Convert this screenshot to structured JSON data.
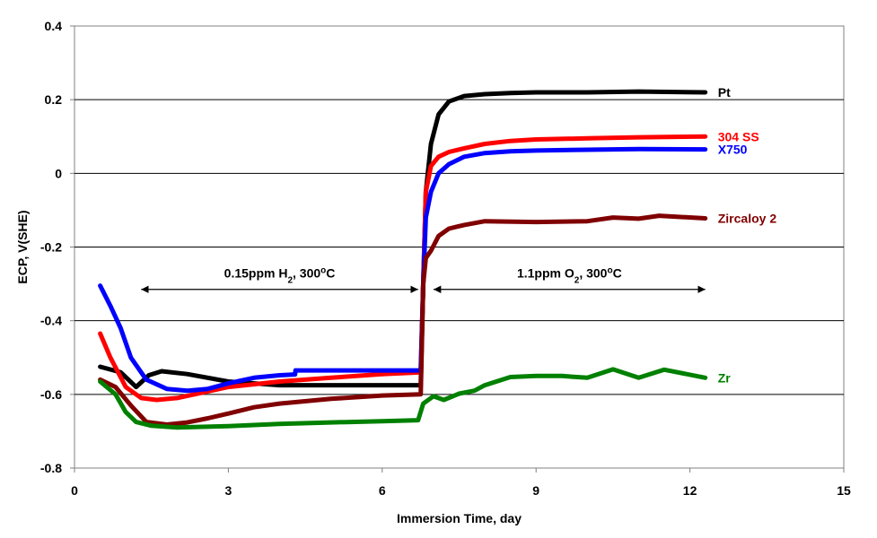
{
  "chart_data": {
    "type": "line",
    "title": "",
    "xlabel": "Immersion Time, day",
    "ylabel": "ECP, V(SHE)",
    "xlim": [
      0,
      15
    ],
    "ylim": [
      -0.8,
      0.4
    ],
    "xticks": [
      0,
      3,
      6,
      9,
      12,
      15
    ],
    "yticks": [
      -0.8,
      -0.6,
      -0.4,
      -0.2,
      0,
      0.2,
      0.4
    ],
    "xtick_labels": [
      "0",
      "3",
      "6",
      "9",
      "12",
      "15"
    ],
    "ytick_labels": [
      "-0.8",
      "-0.6",
      "-0.4",
      "-0.2",
      "0",
      "0.2",
      "0.4"
    ],
    "grid": "horizontal",
    "legend": "inline labels at right end of each series",
    "annotations": [
      {
        "text_main": "0.15ppm H",
        "sub": "2",
        "text_mid": ", 300",
        "sup": "o",
        "text_end": "C",
        "x_from": 1.3,
        "x_to": 6.7,
        "y": -0.315
      },
      {
        "text_main": "1.1ppm O",
        "sub": "2",
        "text_mid": ", 300",
        "sup": "o",
        "text_end": "C",
        "x_from": 7.0,
        "x_to": 12.3,
        "y": -0.315
      }
    ],
    "series": [
      {
        "name": "Pt",
        "color": "#000000",
        "x": [
          0.5,
          0.9,
          1.2,
          1.45,
          1.7,
          2.2,
          3.0,
          4.0,
          5.0,
          6.0,
          6.75,
          6.8,
          6.85,
          6.95,
          7.1,
          7.3,
          7.6,
          8.0,
          8.5,
          9.0,
          10.0,
          11.0,
          12.3
        ],
        "y": [
          -0.525,
          -0.54,
          -0.58,
          -0.548,
          -0.537,
          -0.545,
          -0.565,
          -0.575,
          -0.575,
          -0.575,
          -0.575,
          -0.3,
          -0.05,
          0.08,
          0.16,
          0.195,
          0.21,
          0.215,
          0.218,
          0.22,
          0.22,
          0.222,
          0.22
        ]
      },
      {
        "name": "304 SS",
        "color": "#ff0000",
        "x": [
          0.5,
          0.7,
          1.0,
          1.3,
          1.6,
          2.0,
          2.5,
          3.0,
          4.0,
          5.0,
          6.0,
          6.75,
          6.8,
          6.85,
          6.95,
          7.1,
          7.3,
          7.6,
          8.0,
          8.5,
          9.0,
          10.0,
          11.0,
          12.3
        ],
        "y": [
          -0.435,
          -0.5,
          -0.58,
          -0.61,
          -0.615,
          -0.61,
          -0.595,
          -0.58,
          -0.565,
          -0.555,
          -0.545,
          -0.54,
          -0.3,
          -0.05,
          0.02,
          0.045,
          0.058,
          0.068,
          0.08,
          0.088,
          0.092,
          0.095,
          0.098,
          0.1
        ]
      },
      {
        "name": "X750",
        "color": "#0000ff",
        "x": [
          0.5,
          0.7,
          0.9,
          1.1,
          1.4,
          1.8,
          2.2,
          2.6,
          3.0,
          3.5,
          4.0,
          4.3,
          4.31,
          5.0,
          6.0,
          6.75,
          6.8,
          6.85,
          6.95,
          7.1,
          7.3,
          7.6,
          8.0,
          8.5,
          9.0,
          10.0,
          11.0,
          12.3
        ],
        "y": [
          -0.305,
          -0.36,
          -0.42,
          -0.5,
          -0.56,
          -0.585,
          -0.59,
          -0.585,
          -0.57,
          -0.555,
          -0.548,
          -0.546,
          -0.535,
          -0.535,
          -0.535,
          -0.535,
          -0.3,
          -0.12,
          -0.05,
          0.0,
          0.025,
          0.045,
          0.055,
          0.06,
          0.062,
          0.064,
          0.066,
          0.065
        ]
      },
      {
        "name": "Zircaloy 2",
        "color": "#800000",
        "x": [
          0.5,
          0.8,
          1.1,
          1.4,
          1.8,
          2.2,
          2.6,
          3.0,
          3.5,
          4.0,
          5.0,
          6.0,
          6.75,
          6.8,
          6.85,
          6.95,
          7.1,
          7.3,
          7.6,
          8.0,
          9.0,
          10.0,
          10.5,
          11.0,
          11.4,
          12.3
        ],
        "y": [
          -0.56,
          -0.58,
          -0.63,
          -0.675,
          -0.682,
          -0.676,
          -0.665,
          -0.652,
          -0.635,
          -0.625,
          -0.612,
          -0.603,
          -0.6,
          -0.3,
          -0.23,
          -0.21,
          -0.17,
          -0.15,
          -0.14,
          -0.13,
          -0.132,
          -0.13,
          -0.12,
          -0.123,
          -0.115,
          -0.122
        ]
      },
      {
        "name": "Zr",
        "color": "#008000",
        "x": [
          0.5,
          0.8,
          1.0,
          1.2,
          1.5,
          2.0,
          2.5,
          3.0,
          4.0,
          5.0,
          6.0,
          6.7,
          6.8,
          7.0,
          7.2,
          7.5,
          7.8,
          8.0,
          8.5,
          9.0,
          9.5,
          10.0,
          10.5,
          11.0,
          11.5,
          12.3
        ],
        "y": [
          -0.565,
          -0.6,
          -0.648,
          -0.675,
          -0.685,
          -0.69,
          -0.688,
          -0.686,
          -0.68,
          -0.676,
          -0.673,
          -0.67,
          -0.625,
          -0.605,
          -0.615,
          -0.598,
          -0.59,
          -0.575,
          -0.553,
          -0.55,
          -0.55,
          -0.555,
          -0.532,
          -0.555,
          -0.533,
          -0.555
        ]
      }
    ]
  }
}
